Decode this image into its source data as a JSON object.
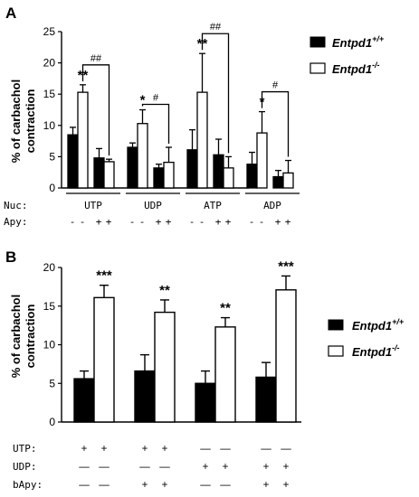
{
  "panels": [
    {
      "letter": "A",
      "ylabel_line1": "% of carbachol",
      "ylabel_line2": "contraction",
      "colors": {
        "ko_edge": "#000000",
        "wt_fill": "#000000",
        "ko_fill": "#ffffff"
      },
      "legend": [
        {
          "base": "Entpd1",
          "sup": "+/+",
          "fill": "wt"
        },
        {
          "base": "Entpd1",
          "sup": "-/-",
          "fill": "ko"
        }
      ],
      "row_labels": [
        "Nuc:",
        "Apy:"
      ],
      "chart_data": {
        "type": "bar",
        "ylim": [
          0,
          25
        ],
        "yticks": [
          "0",
          "5",
          "10",
          "15",
          "20",
          "25"
        ],
        "groups": [
          "UTP",
          "UDP",
          "ATP",
          "ADP"
        ],
        "apy_marks": [
          "-",
          "-",
          "+",
          "+"
        ],
        "series": [
          {
            "name": "Entpd1+/+",
            "values": [
              8.5,
              4.8,
              6.5,
              3.2,
              6.1,
              5.3,
              3.8,
              1.8
            ],
            "errors": [
              1.2,
              1.5,
              0.7,
              0.6,
              3.2,
              2.5,
              1.9,
              1.0
            ]
          },
          {
            "name": "Entpd1-/-",
            "values": [
              15.3,
              4.2,
              10.3,
              4.1,
              15.3,
              3.2,
              8.8,
              2.4
            ],
            "errors": [
              1.2,
              0.4,
              2.2,
              2.4,
              6.2,
              1.8,
              3.4,
              2.0
            ]
          }
        ],
        "significance": [
          {
            "group": 0,
            "text": "**"
          },
          {
            "group": 1,
            "text": "*"
          },
          {
            "group": 2,
            "text": "**"
          },
          {
            "group": 3,
            "text": "*"
          }
        ],
        "brackets": [
          {
            "group": 0,
            "text": "##"
          },
          {
            "group": 1,
            "text": "#"
          },
          {
            "group": 2,
            "text": "##"
          },
          {
            "group": 3,
            "text": "#"
          }
        ]
      }
    },
    {
      "letter": "B",
      "ylabel_line1": "% of carbachol",
      "ylabel_line2": "contraction",
      "legend": [
        {
          "base": "Entpd1",
          "sup": "+/+",
          "fill": "wt"
        },
        {
          "base": "Entpd1",
          "sup": "-/-",
          "fill": "ko"
        }
      ],
      "condition_rows": [
        {
          "label": "UTP:",
          "marks": [
            "+",
            "+",
            "+",
            "+",
            "—",
            "—",
            "—",
            "—"
          ]
        },
        {
          "label": "UDP:",
          "marks": [
            "—",
            "—",
            "—",
            "—",
            "+",
            "+",
            "+",
            "+"
          ]
        },
        {
          "label": "bApy:",
          "marks": [
            "—",
            "—",
            "+",
            "+",
            "—",
            "—",
            "+",
            "+"
          ]
        }
      ],
      "chart_data": {
        "type": "bar",
        "ylim": [
          0,
          20
        ],
        "yticks": [
          "0",
          "5",
          "10",
          "15",
          "20"
        ],
        "series": [
          {
            "name": "Entpd1+/+",
            "values": [
              5.6,
              6.6,
              5.0,
              5.8
            ],
            "errors": [
              1.0,
              2.1,
              1.6,
              1.9
            ]
          },
          {
            "name": "Entpd1-/-",
            "values": [
              16.1,
              14.2,
              12.3,
              17.1
            ],
            "errors": [
              1.6,
              1.6,
              1.2,
              1.8
            ]
          }
        ],
        "significance": [
          "***",
          "**",
          "**",
          "***"
        ]
      }
    }
  ]
}
